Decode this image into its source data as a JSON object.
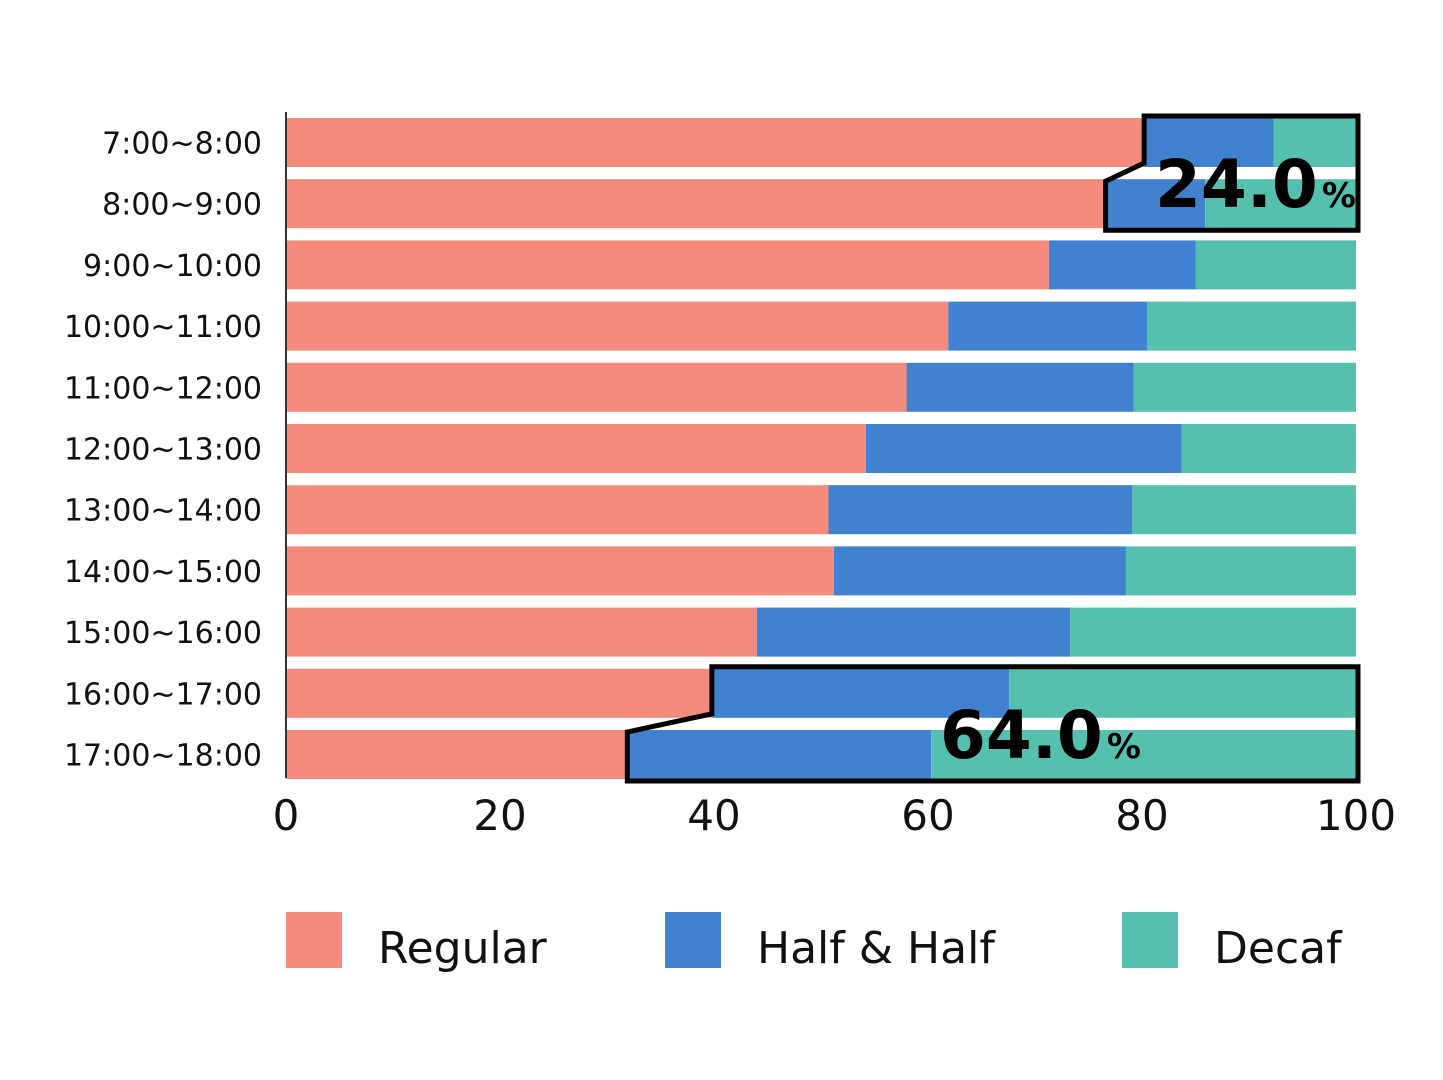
{
  "chart_data": {
    "type": "bar",
    "orientation": "horizontal",
    "stacked": true,
    "categories": [
      "7:00~8:00",
      "8:00~9:00",
      "9:00~10:00",
      "10:00~11:00",
      "11:00~12:00",
      "12:00~13:00",
      "13:00~14:00",
      "14:00~15:00",
      "15:00~16:00",
      "16:00~17:00",
      "17:00~18:00"
    ],
    "series": [
      {
        "name": "Regular",
        "color": "#F48B7D",
        "values": [
          80.2,
          76.6,
          71.3,
          61.9,
          58.0,
          54.2,
          50.7,
          51.2,
          44.0,
          39.8,
          31.9
        ]
      },
      {
        "name": "Half & Half",
        "color": "#4182D0",
        "values": [
          12.1,
          9.3,
          13.7,
          18.6,
          21.2,
          29.5,
          28.4,
          27.3,
          29.3,
          27.8,
          28.4
        ]
      },
      {
        "name": "Decaf",
        "color": "#56C0AF",
        "values": [
          7.7,
          14.1,
          15.0,
          19.5,
          20.8,
          16.3,
          20.9,
          21.5,
          26.7,
          32.4,
          39.7
        ]
      }
    ],
    "xlim": [
      0,
      100
    ],
    "xticks": [
      "0",
      "20",
      "40",
      "60",
      "80",
      "100"
    ],
    "grid": false,
    "legend": "bottom",
    "callouts": [
      {
        "value": "24.0",
        "unit": "%",
        "categories": [
          "7:00~8:00",
          "8:00~9:00"
        ]
      },
      {
        "value": "64.0",
        "unit": "%",
        "categories": [
          "16:00~17:00",
          "17:00~18:00"
        ]
      }
    ]
  }
}
